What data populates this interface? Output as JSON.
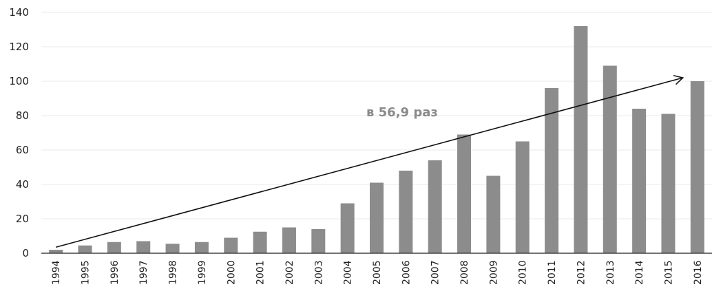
{
  "chart_data": {
    "type": "bar",
    "categories": [
      "1994",
      "1995",
      "1996",
      "1997",
      "1998",
      "1999",
      "2000",
      "2001",
      "2002",
      "2003",
      "2004",
      "2005",
      "2006",
      "2007",
      "2008",
      "2009",
      "2010",
      "2011",
      "2012",
      "2013",
      "2014",
      "2015",
      "2016"
    ],
    "values": [
      2,
      4.5,
      6.5,
      7,
      5.5,
      6.5,
      9,
      12.5,
      15,
      14,
      29,
      41,
      48,
      54,
      69,
      45,
      65,
      96,
      132,
      109,
      84,
      81,
      100
    ],
    "ylim": [
      0,
      140
    ],
    "yticks": [
      0,
      20,
      40,
      60,
      80,
      100,
      120,
      140
    ],
    "grid": true,
    "colors": {
      "bar": "#8c8c8c",
      "grid": "#e8e8e8",
      "axis": "#444444",
      "arrow": "#111111",
      "annotation": "#8a8a8a"
    },
    "annotation": {
      "text": "в 56,9 раз",
      "arrow_from": {
        "x": "1994",
        "y": 3.5
      },
      "arrow_to": {
        "x": "2015.5",
        "y": 102
      }
    }
  }
}
